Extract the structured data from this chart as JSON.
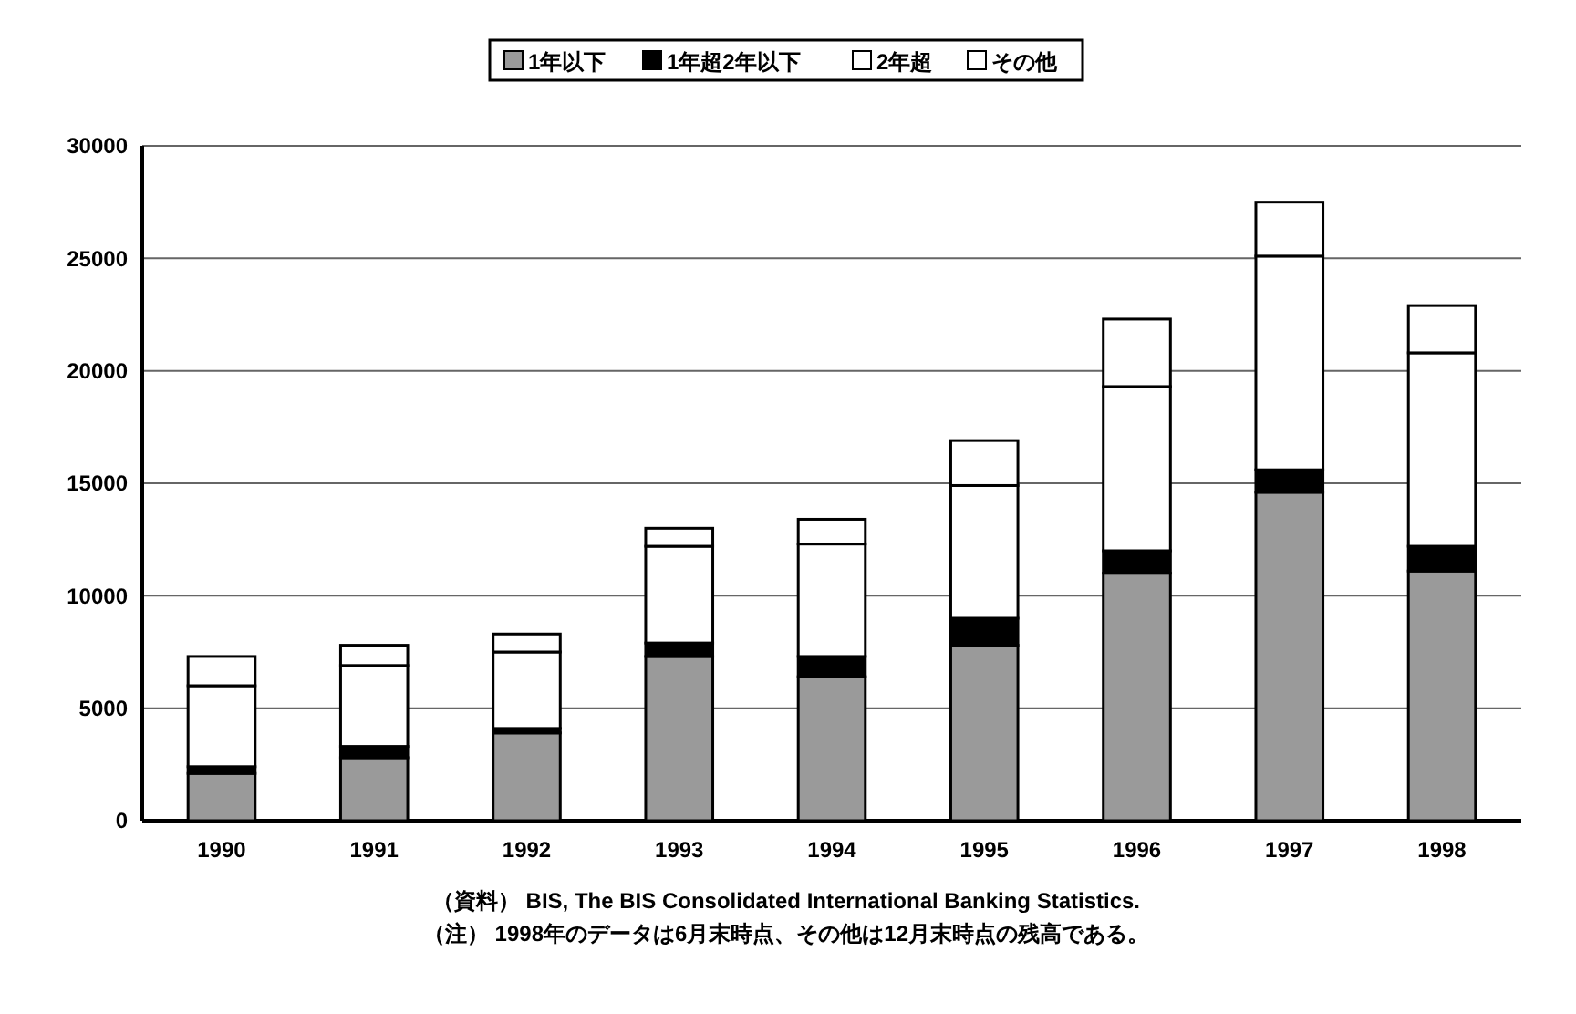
{
  "chart_data": {
    "type": "bar",
    "stacked": true,
    "categories": [
      "1990",
      "1991",
      "1992",
      "1993",
      "1994",
      "1995",
      "1996",
      "1997",
      "1998"
    ],
    "series": [
      {
        "name": "1年以下",
        "color": "#9a9a9a",
        "values": [
          2100,
          2800,
          3900,
          7300,
          6400,
          7800,
          11000,
          14600,
          11100
        ]
      },
      {
        "name": "1年超2年以下",
        "color": "#000000",
        "values": [
          300,
          500,
          200,
          600,
          900,
          1200,
          1000,
          1000,
          1100
        ]
      },
      {
        "name": "2年超",
        "color": "#ffffff",
        "values": [
          3600,
          3600,
          3400,
          4300,
          5000,
          5900,
          7300,
          9500,
          8600
        ]
      },
      {
        "name": "その他",
        "color": "#ffffff",
        "values": [
          1300,
          900,
          800,
          800,
          1100,
          2000,
          3000,
          2400,
          2100
        ]
      }
    ],
    "ylim": [
      0,
      30000
    ],
    "yticks": [
      0,
      5000,
      10000,
      15000,
      20000,
      25000,
      30000
    ],
    "grid": "y",
    "legend": "top",
    "annotations": [
      "（資料） BIS, The BIS Consolidated International Banking Statistics.",
      "（注） 1998年のデータは6月末時点、その他は12月末時点の残高である。"
    ]
  }
}
